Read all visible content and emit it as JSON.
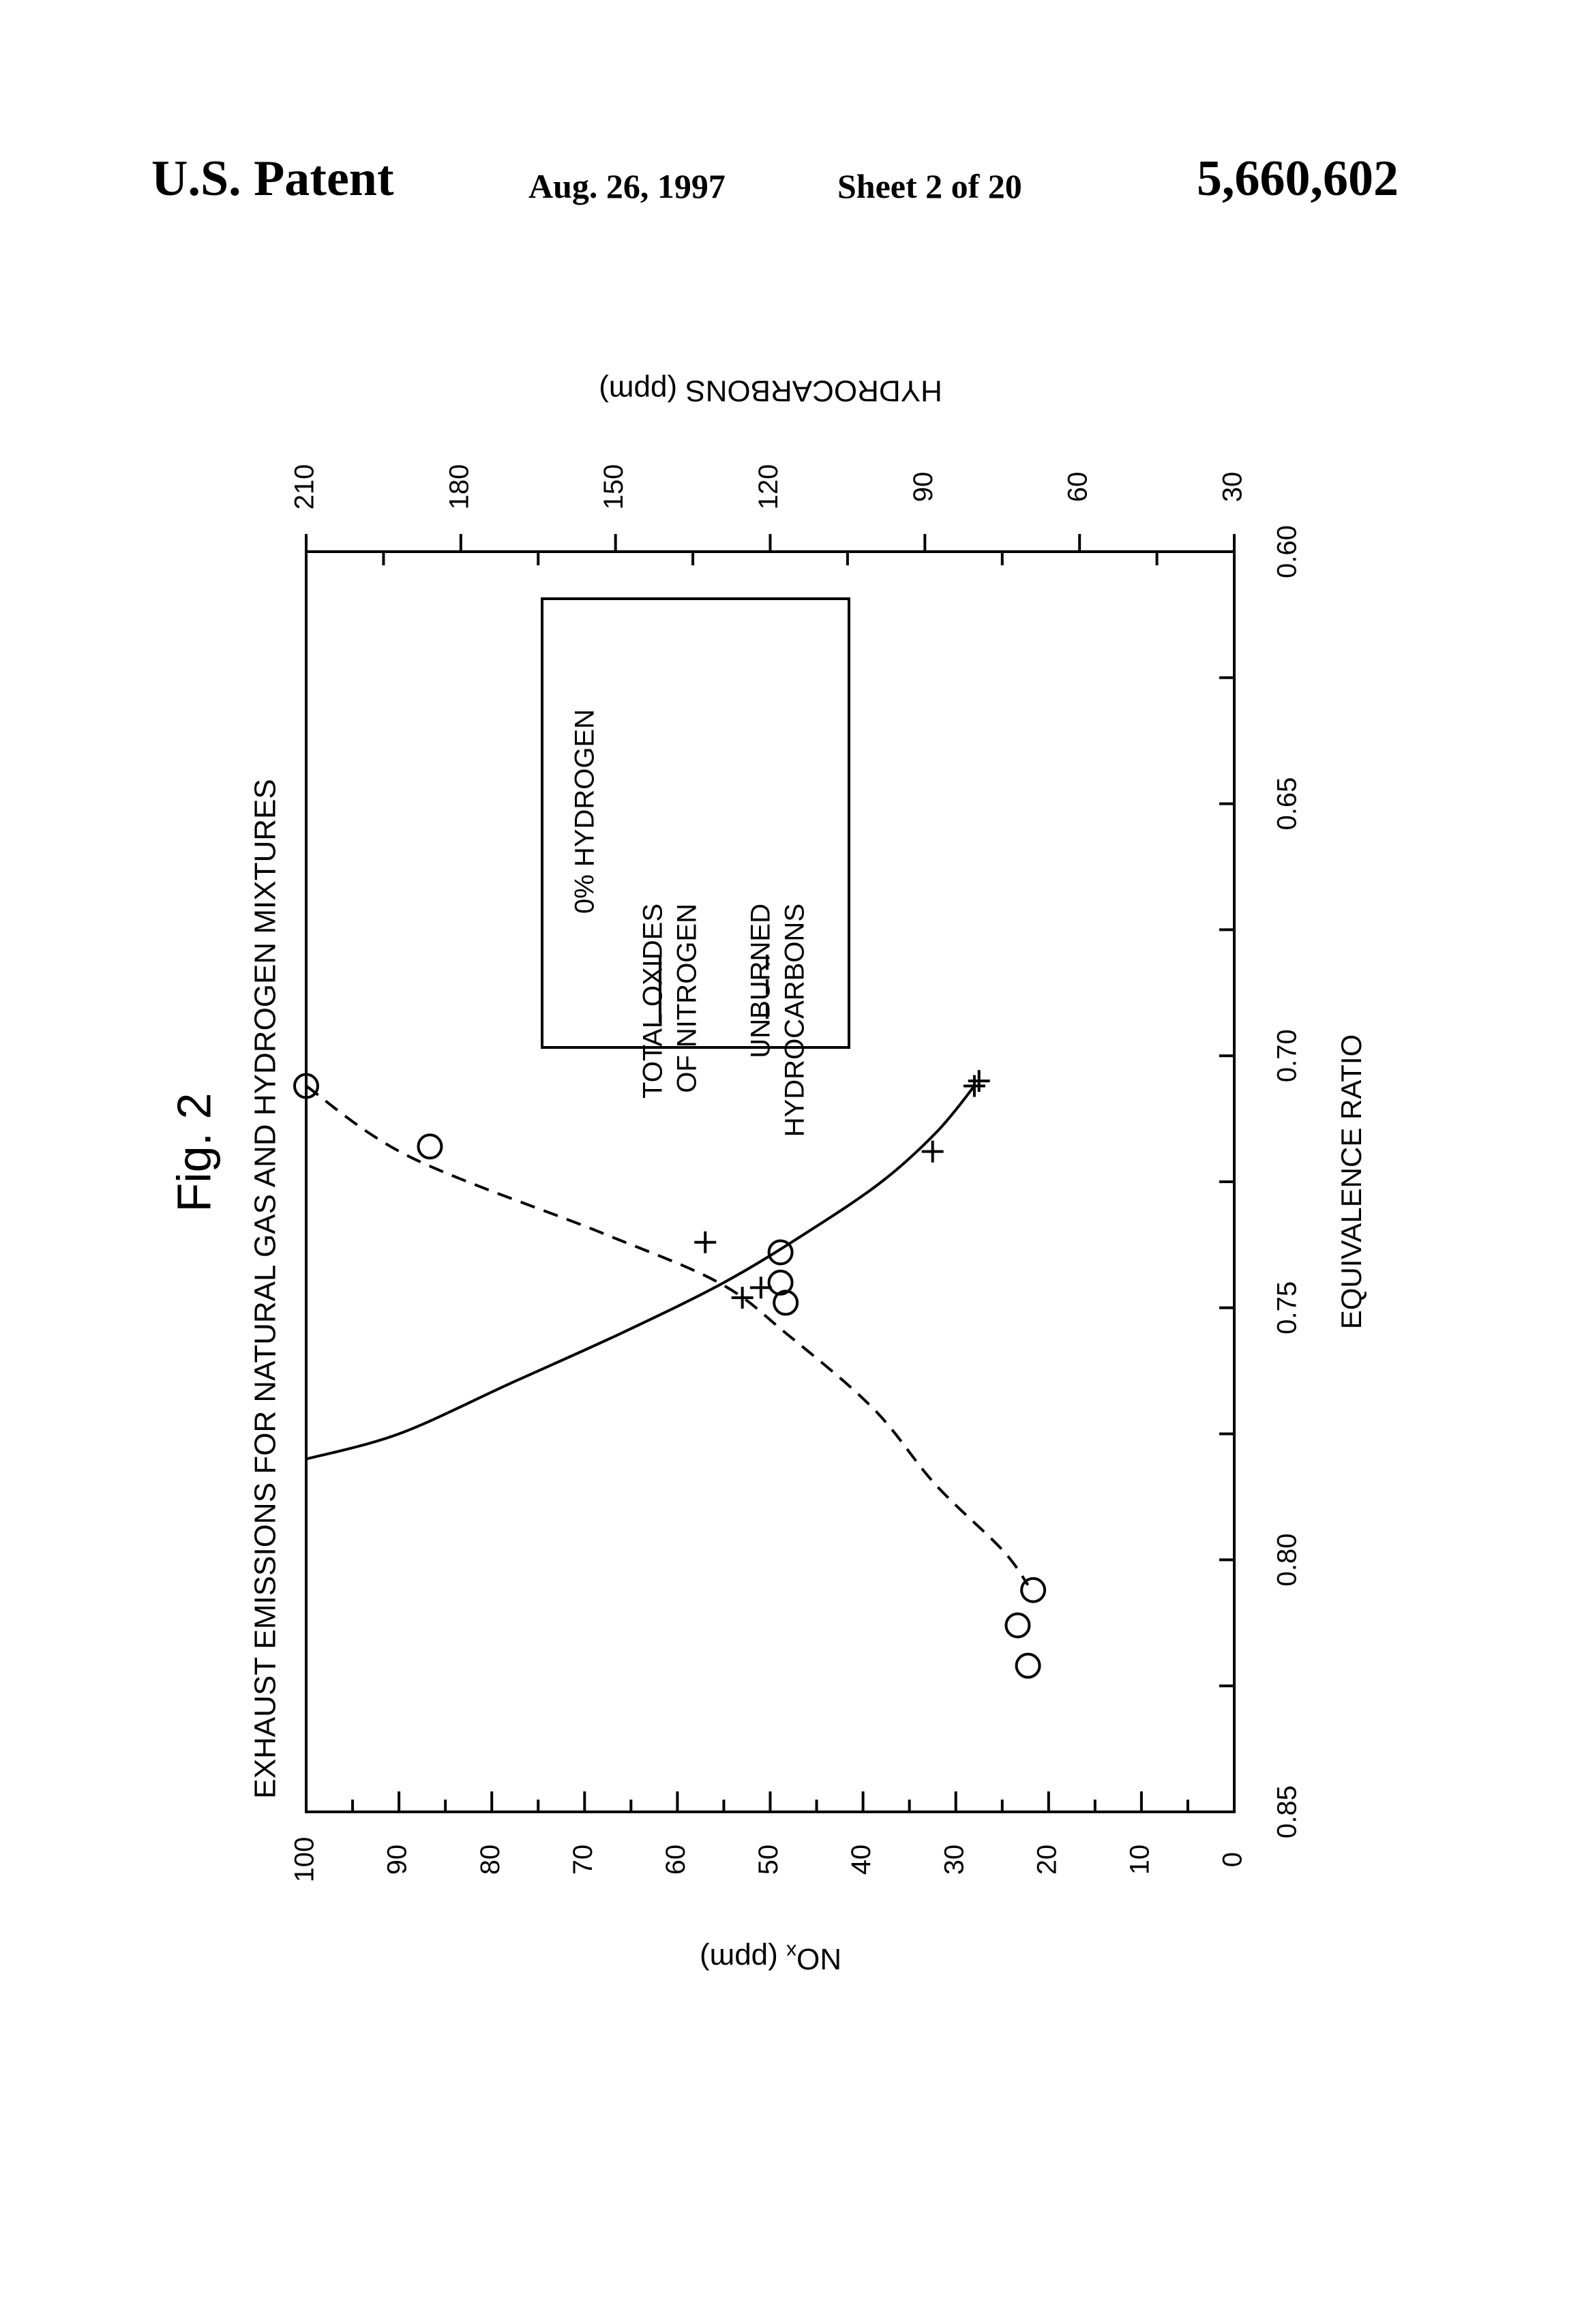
{
  "header": {
    "title": "U.S. Patent",
    "date": "Aug. 26, 1997",
    "sheet": "Sheet 2 of 20",
    "number": "5,660,602"
  },
  "colors": {
    "ink": "#000000",
    "paper": "#ffffff"
  },
  "chart_data": {
    "type": "line",
    "orientation": "rotated 90 degrees counter-clockwise",
    "figure_label": "Fig. 2",
    "title": "EXHAUST EMISSIONS FOR NATURAL GAS AND HYDROGEN MIXTURES",
    "xlabel": "EQUIVALENCE RATIO",
    "ylabel_left": "NOx (ppm)",
    "ylabel_right": "HYDROCARBONS (ppm)",
    "xlim": [
      0.6,
      0.85
    ],
    "ylim_left": [
      0,
      100
    ],
    "ylim_right": [
      30,
      210
    ],
    "x_ticks": [
      "0.60",
      "0.65",
      "0.70",
      "0.75",
      "0.80",
      "0.85"
    ],
    "y_left_ticks": [
      "0",
      "10",
      "20",
      "30",
      "40",
      "50",
      "60",
      "70",
      "80",
      "90",
      "100"
    ],
    "y_right_ticks": [
      "30",
      "60",
      "90",
      "120",
      "150",
      "180",
      "210"
    ],
    "legend": {
      "heading": "0% HYDROGEN",
      "entries": [
        {
          "style": "solid",
          "label_line1": "TOTAL OXIDES",
          "label_line2": "OF NITROGEN"
        },
        {
          "style": "dashed",
          "label_line1": "UNBURNED",
          "label_line2": "HYDROCARBONS"
        }
      ]
    },
    "series": [
      {
        "name": "TOTAL OXIDES OF NITROGEN",
        "axis": "left",
        "line": "solid",
        "marker": "plus",
        "points": [
          [
            0.705,
            27.5
          ],
          [
            0.706,
            28
          ],
          [
            0.719,
            32.5
          ],
          [
            0.737,
            57
          ],
          [
            0.746,
            51
          ],
          [
            0.748,
            53
          ]
        ],
        "curve": [
          [
            0.706,
            28
          ],
          [
            0.715,
            32
          ],
          [
            0.725,
            38
          ],
          [
            0.735,
            46
          ],
          [
            0.745,
            55
          ],
          [
            0.755,
            66
          ],
          [
            0.765,
            78
          ],
          [
            0.775,
            90
          ],
          [
            0.78,
            100
          ]
        ]
      },
      {
        "name": "UNBURNED HYDROCARBONS",
        "axis": "right",
        "line": "dashed",
        "marker": "circle",
        "points": [
          [
            0.706,
            210
          ],
          [
            0.718,
            186
          ],
          [
            0.739,
            118
          ],
          [
            0.745,
            118
          ],
          [
            0.749,
            117
          ],
          [
            0.806,
            69
          ],
          [
            0.813,
            72
          ],
          [
            0.821,
            70
          ]
        ],
        "curve": [
          [
            0.706,
            210
          ],
          [
            0.72,
            190
          ],
          [
            0.735,
            153
          ],
          [
            0.745,
            130
          ],
          [
            0.755,
            117
          ],
          [
            0.77,
            100
          ],
          [
            0.785,
            88
          ],
          [
            0.798,
            75
          ],
          [
            0.805,
            70
          ]
        ]
      }
    ]
  }
}
